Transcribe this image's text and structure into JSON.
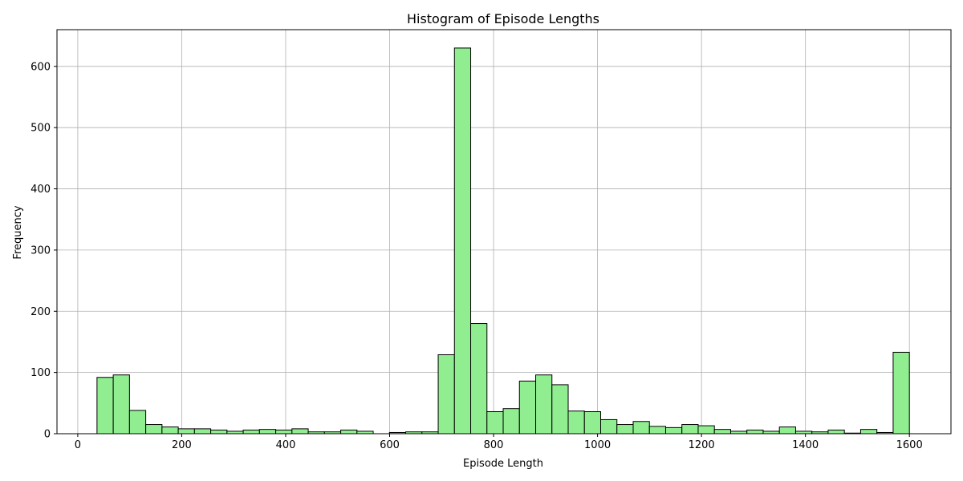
{
  "chart_data": {
    "type": "bar",
    "title": "Histogram of Episode Lengths",
    "xlabel": "Episode Length",
    "ylabel": "Frequency",
    "xlim": [
      -40,
      1680
    ],
    "ylim": [
      0,
      660
    ],
    "x_ticks": [
      "0",
      "200",
      "400",
      "600",
      "800",
      "1000",
      "1200",
      "1400",
      "1600"
    ],
    "y_ticks": [
      "0",
      "100",
      "200",
      "300",
      "400",
      "500",
      "600"
    ],
    "grid": true,
    "bar_color": "#90ee90",
    "edge_color": "#000000",
    "bin_start": 37,
    "bin_width": 31.26,
    "values": [
      92,
      96,
      38,
      15,
      11,
      8,
      8,
      6,
      4,
      6,
      7,
      6,
      8,
      3,
      3,
      6,
      4,
      0,
      2,
      3,
      3,
      129,
      630,
      180,
      36,
      41,
      86,
      96,
      80,
      37,
      36,
      23,
      15,
      20,
      12,
      10,
      15,
      13,
      7,
      4,
      6,
      4,
      11,
      4,
      3,
      6,
      1,
      7,
      2,
      133
    ]
  }
}
